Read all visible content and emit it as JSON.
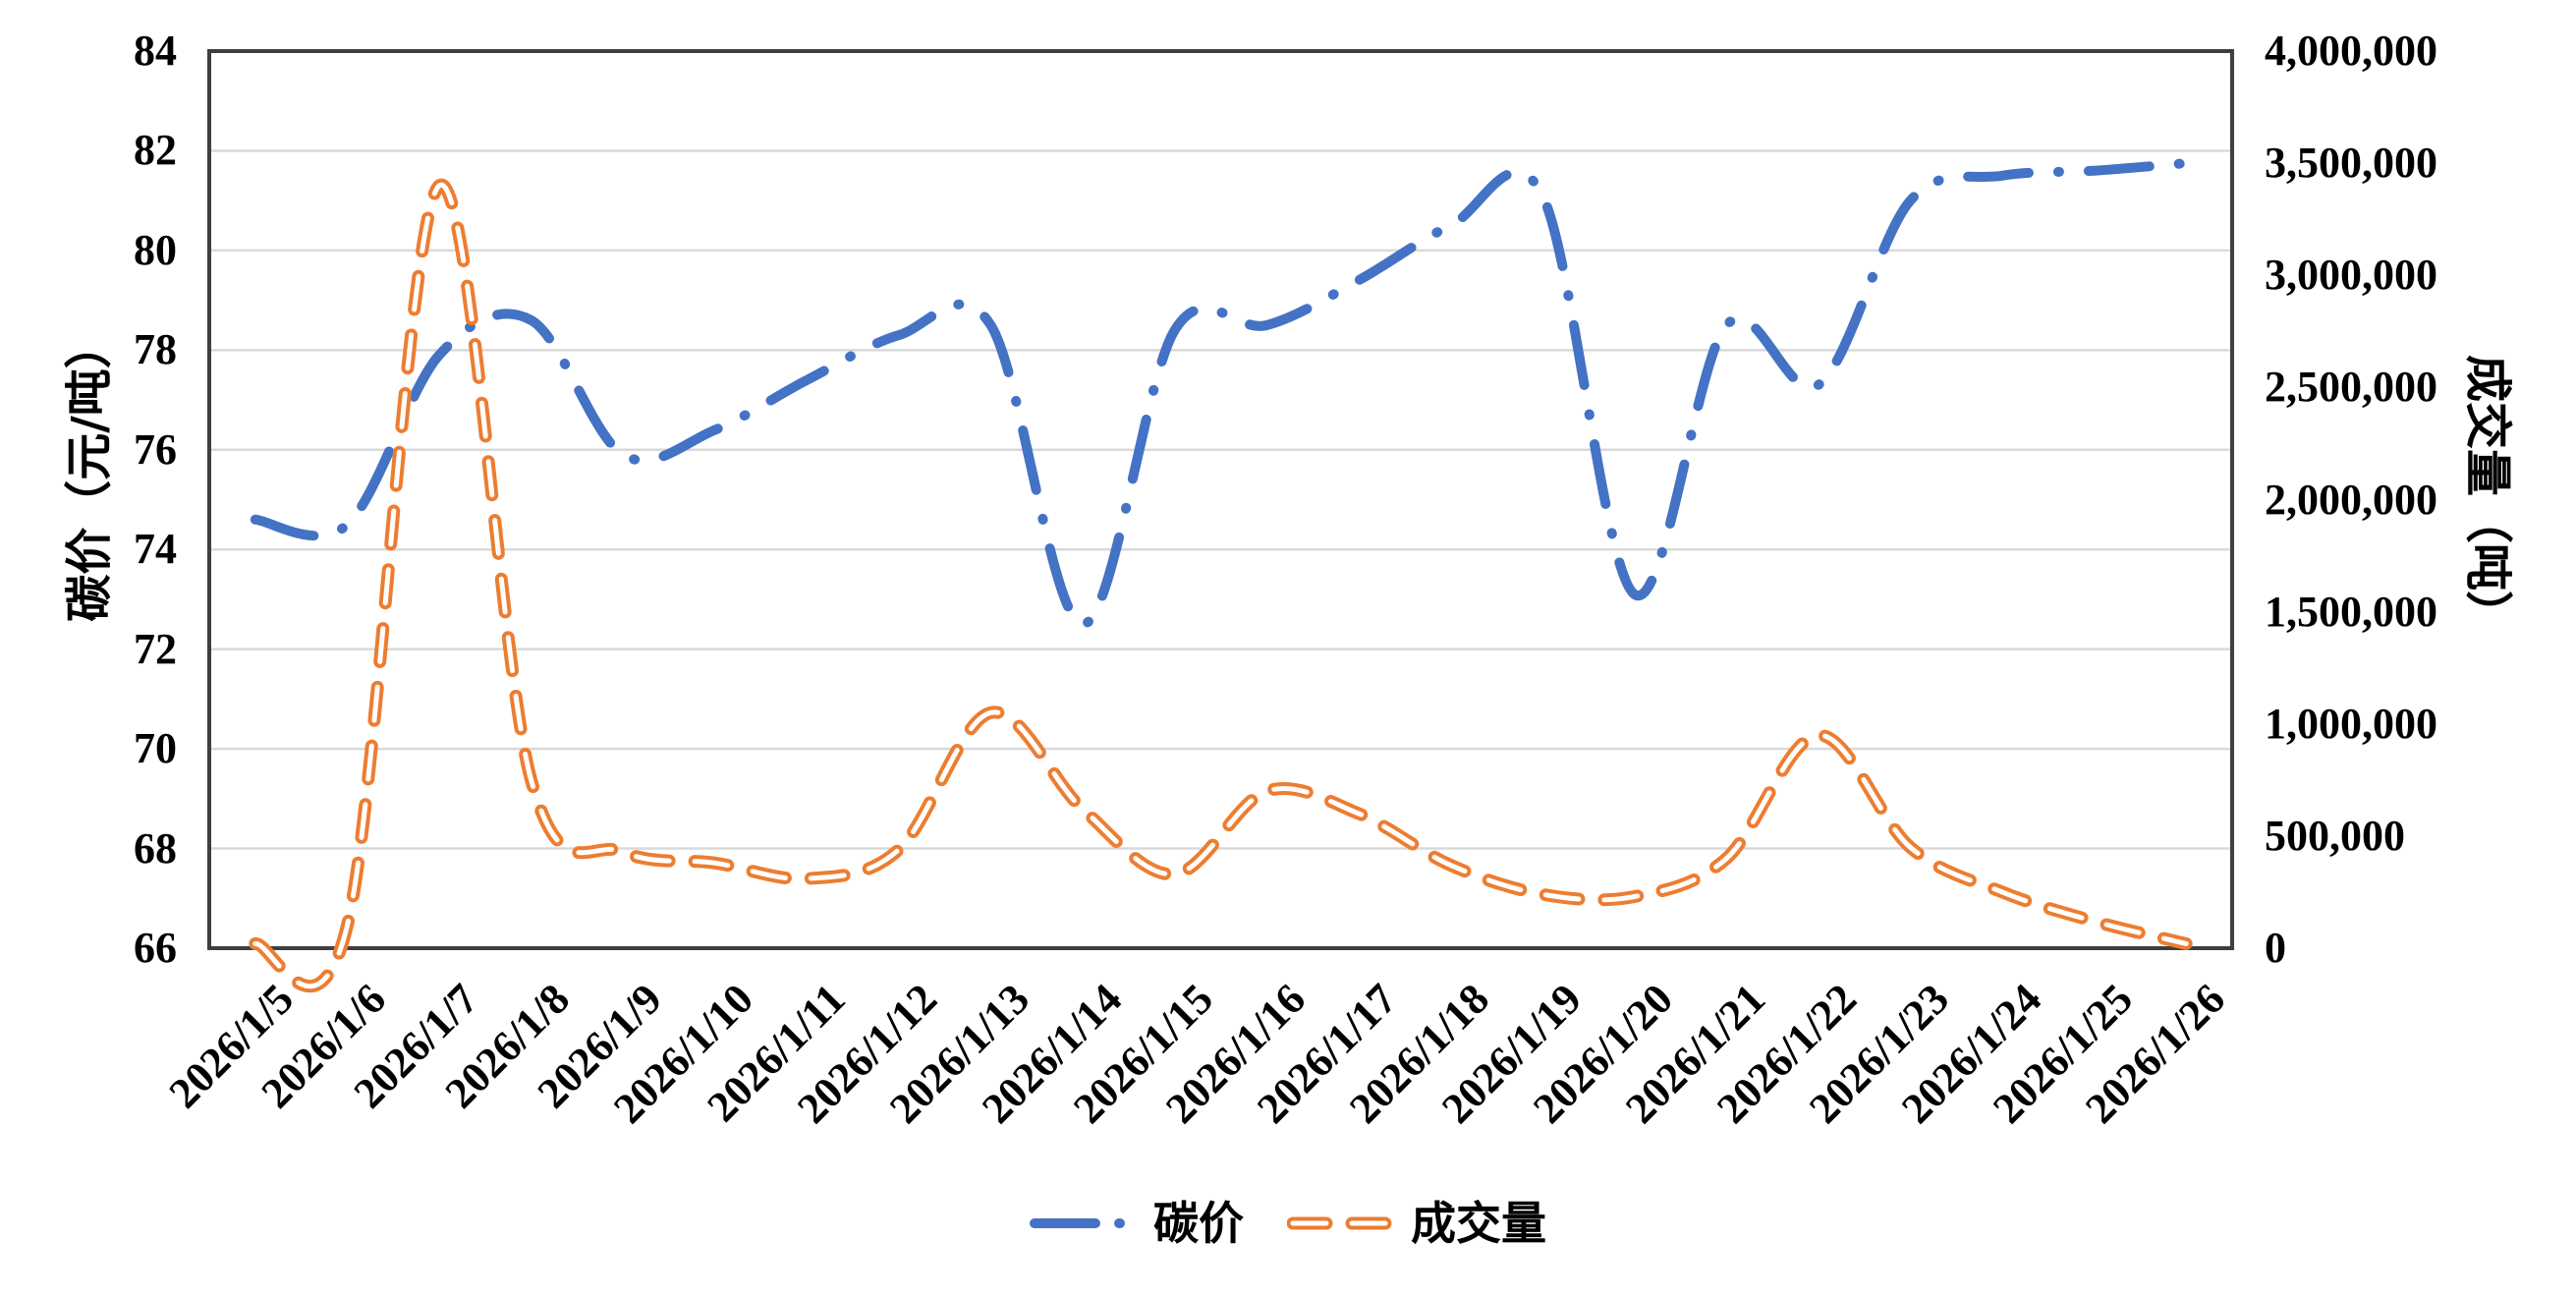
{
  "chart_data": {
    "type": "line",
    "x": [
      "2026/1/5",
      "2026/1/6",
      "2026/1/7",
      "2026/1/8",
      "2026/1/9",
      "2026/1/10",
      "2026/1/11",
      "2026/1/12",
      "2026/1/13",
      "2026/1/14",
      "2026/1/15",
      "2026/1/16",
      "2026/1/17",
      "2026/1/18",
      "2026/1/19",
      "2026/1/20",
      "2026/1/21",
      "2026/1/22",
      "2026/1/23",
      "2026/1/24",
      "2026/1/25",
      "2026/1/26"
    ],
    "series": [
      {
        "name": "碳价",
        "axis": "left",
        "color": "#4472C4",
        "style": "dash-dot",
        "values": [
          74.6,
          74.5,
          77.9,
          78.6,
          75.9,
          76.4,
          77.4,
          78.3,
          78.5,
          72.5,
          78.4,
          78.5,
          79.4,
          80.5,
          81.1,
          73.1,
          78.5,
          77.3,
          81.0,
          81.5,
          81.6,
          81.75
        ]
      },
      {
        "name": "成交量",
        "axis": "right",
        "color": "#ED7D31",
        "style": "hollow-dash",
        "values": [
          20000,
          100000,
          3400000,
          750000,
          430000,
          380000,
          310000,
          440000,
          1050000,
          620000,
          330000,
          700000,
          600000,
          370000,
          240000,
          230000,
          400000,
          950000,
          450000,
          250000,
          120000,
          20000
        ]
      }
    ],
    "left_axis": {
      "title": "碳价（元/吨）",
      "min": 66,
      "max": 84,
      "step": 2,
      "tick_labels": [
        "66",
        "68",
        "70",
        "72",
        "74",
        "76",
        "78",
        "80",
        "82",
        "84"
      ]
    },
    "right_axis": {
      "title": "成交量（吨）",
      "min": 0,
      "max": 4000000,
      "step": 500000,
      "tick_labels": [
        "0",
        "500,000",
        "1,000,000",
        "1,500,000",
        "2,000,000",
        "2,500,000",
        "3,000,000",
        "3,500,000",
        "4,000,000"
      ]
    },
    "grid": true,
    "legend_position": "bottom"
  },
  "legend": {
    "price_label": "碳价",
    "volume_label": "成交量"
  },
  "colors": {
    "price_line": "#4472C4",
    "volume_line": "#ED7D31",
    "gridline": "#D9D9D9",
    "plot_border": "#3F3F3F",
    "text": "#000000",
    "background": "#FFFFFF"
  }
}
